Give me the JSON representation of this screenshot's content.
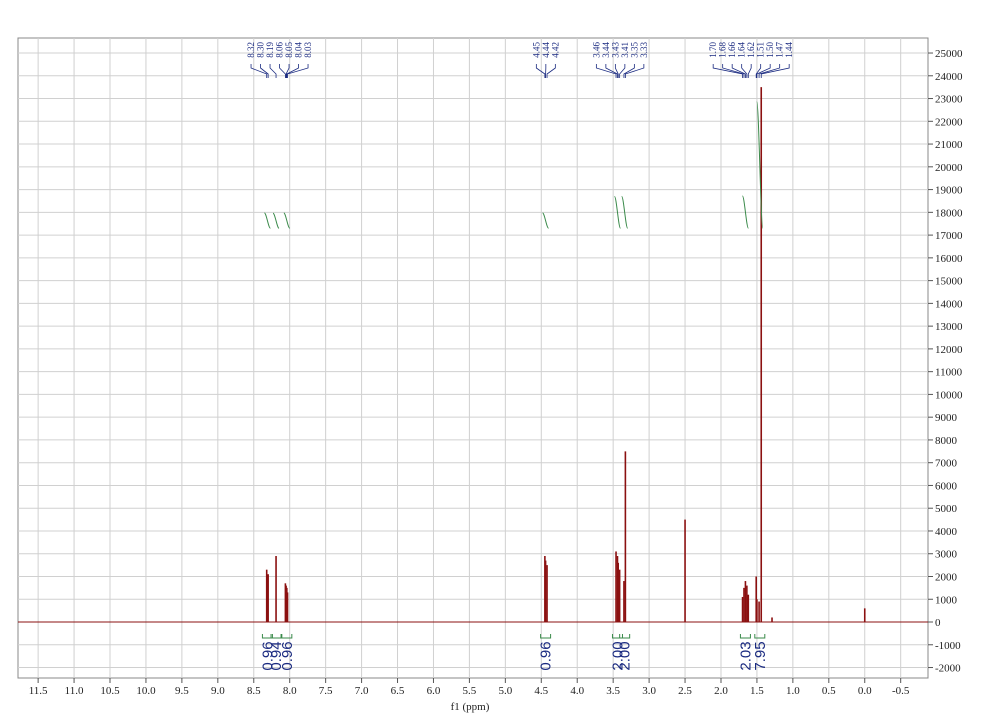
{
  "chart_data": {
    "type": "nmr",
    "x_label": "f1 (ppm)",
    "xlim": [
      11.78,
      -0.88
    ],
    "ylim": [
      -2460,
      25660
    ],
    "xticks": [
      11.5,
      {
        "value": 11,
        "label": "11.0"
      },
      10.5,
      {
        "value": 10,
        "label": "10.0"
      },
      9.5,
      {
        "value": 9,
        "label": "9.0"
      },
      8.5,
      {
        "value": 8,
        "label": "8.0"
      },
      7.5,
      {
        "value": 7,
        "label": "7.0"
      },
      6.5,
      {
        "value": 6,
        "label": "6.0"
      },
      5.5,
      {
        "value": 5,
        "label": "5.0"
      },
      4.5,
      {
        "value": 4,
        "label": "4.0"
      },
      3.5,
      {
        "value": 3,
        "label": "3.0"
      },
      2.5,
      {
        "value": 2,
        "label": "2.0"
      },
      1.5,
      {
        "value": 1,
        "label": "1.0"
      },
      0.5,
      {
        "value": 0,
        "label": "0.0"
      },
      -0.5
    ],
    "yticks": [
      -2000,
      -1000,
      0,
      1000,
      2000,
      3000,
      4000,
      5000,
      6000,
      7000,
      8000,
      9000,
      10000,
      11000,
      12000,
      13000,
      14000,
      15000,
      16000,
      17000,
      18000,
      19000,
      20000,
      21000,
      22000,
      23000,
      24000,
      25000
    ],
    "grid": true,
    "color": "#8b1010",
    "peaks": {
      "x": [
        8.32,
        8.3,
        8.19,
        8.06,
        8.05,
        8.04,
        8.03,
        4.45,
        4.44,
        4.42,
        3.46,
        3.44,
        3.43,
        3.41,
        3.35,
        3.33,
        2.5,
        1.7,
        1.68,
        1.66,
        1.64,
        1.62,
        1.51,
        1.5,
        1.47,
        1.44,
        1.29,
        0.0
      ],
      "values": [
        2300,
        2100,
        2900,
        1700,
        1600,
        1500,
        1300,
        2900,
        2700,
        2500,
        3100,
        2900,
        2600,
        2300,
        1800,
        7500,
        4500,
        1100,
        1500,
        1800,
        1600,
        1200,
        2000,
        1000,
        900,
        23500,
        200,
        600
      ]
    },
    "peak_labels": [
      {
        "x": [
          8.32,
          8.3,
          8.19,
          8.06,
          8.05,
          8.04,
          8.03
        ],
        "labels": [
          "8.32",
          "8.30",
          "8.19",
          "8.06",
          "8.05",
          "8.04",
          "8.03"
        ]
      },
      {
        "x": [
          4.45,
          4.44,
          4.42
        ],
        "labels": [
          "4.45",
          "4.44",
          "4.42"
        ]
      },
      {
        "x": [
          3.46,
          3.44,
          3.43,
          3.41,
          3.35,
          3.33
        ],
        "labels": [
          "3.46",
          "3.44",
          "3.43",
          "3.41",
          "3.35",
          "3.33"
        ]
      },
      {
        "x": [
          1.7,
          1.68,
          1.66,
          1.64,
          1.62,
          1.51,
          1.5,
          1.47,
          1.44
        ],
        "labels": [
          "1.70",
          "1.68",
          "1.66",
          "1.64",
          "1.62",
          "1.51",
          "1.50",
          "1.47",
          "1.44"
        ]
      }
    ],
    "integrals": {
      "x": [
        8.31,
        8.19,
        8.04,
        4.44,
        3.44,
        3.34,
        1.66,
        1.46
      ],
      "labels": [
        "0.96",
        "0.94",
        "0.96",
        "0.96",
        "2.00",
        "2.00",
        "2.03",
        "7.95"
      ]
    }
  }
}
